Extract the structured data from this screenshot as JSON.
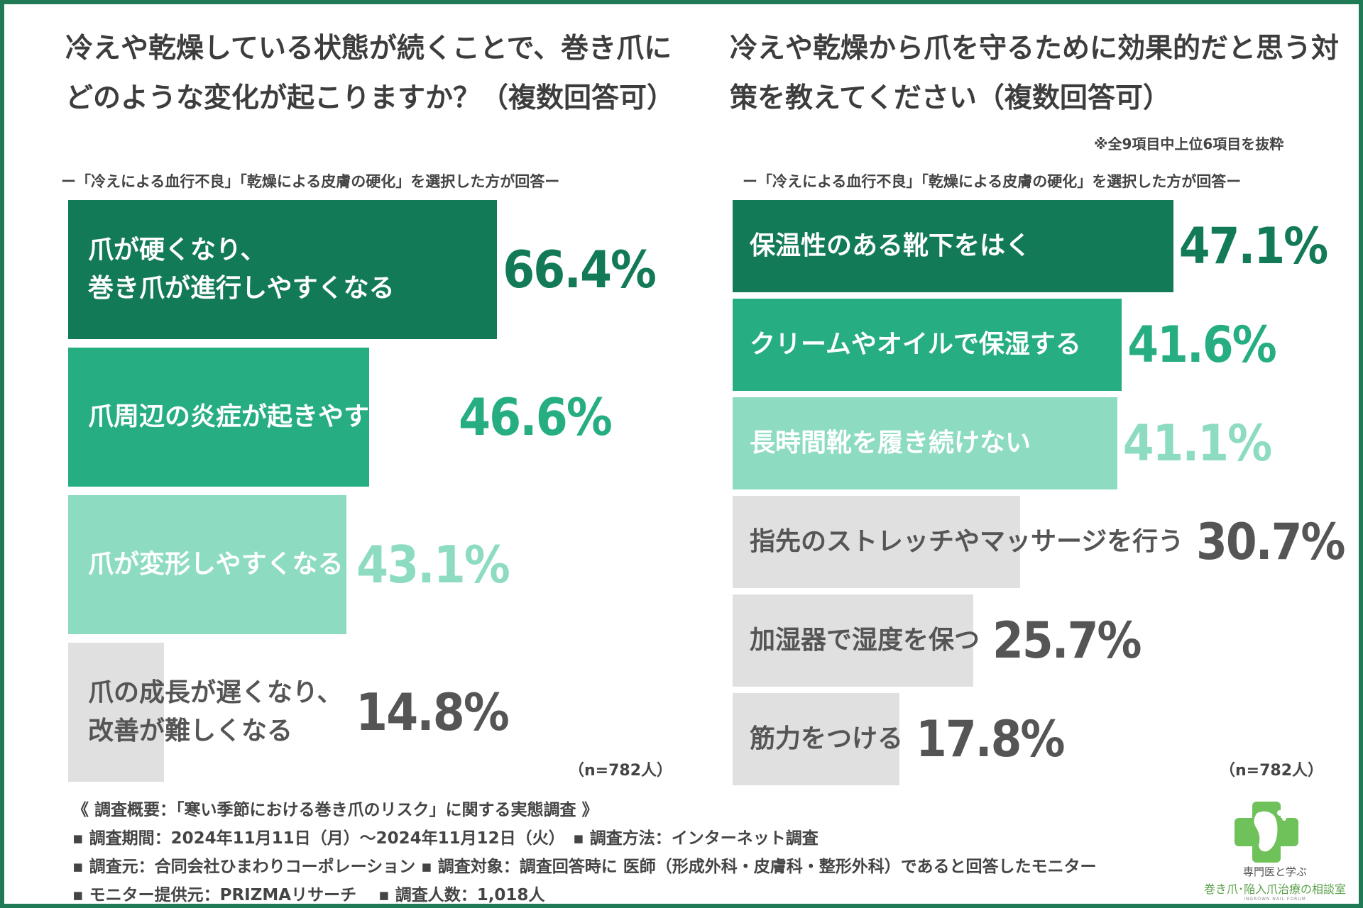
{
  "colors": {
    "frame": "#1f7a55",
    "dark": "#137a57",
    "mid": "#26ad82",
    "light": "#8ddcc2",
    "gray": "#e0e0e0",
    "grayText": "#555555"
  },
  "left": {
    "title": "冷えや乾燥している状態が続くことで、巻き爪にどのような変化が起こりますか？（複数回答可）",
    "subnote": "ー「冷えによる血行不良」「乾燥による皮膚の硬化」を選択した方が回答ー",
    "n": "（n=782人）"
  },
  "right": {
    "title": "冷えや乾燥から爪を守るために効果的だと思う対策を教えてください（複数回答可）",
    "extract_note": "※全9項目中上位6項目を抜粋",
    "subnote": "ー「冷えによる血行不良」「乾燥による皮膚の硬化」を選択した方が回答ー",
    "n": "（n=782人）"
  },
  "chart_data": [
    {
      "type": "bar",
      "orientation": "horizontal",
      "title": "冷えや乾燥している状態が続くことで、巻き爪にどのような変化が起こりますか？（複数回答可）",
      "unit": "%",
      "xlim": [
        0,
        100
      ],
      "categories": [
        "爪が硬くなり、\n巻き爪が進行しやすくなる",
        "爪周辺の炎症が起きやすくなる",
        "爪が変形しやすくなる",
        "爪の成長が遅くなり、\n改善が難しくなる"
      ],
      "values": [
        66.4,
        46.6,
        43.1,
        14.8
      ],
      "value_labels": [
        "66.4%",
        "46.6%",
        "43.1%",
        "14.8%"
      ],
      "bar_colors": [
        "#137a57",
        "#26ad82",
        "#8ddcc2",
        "#e0e0e0"
      ],
      "label_colors": [
        "#ffffff",
        "#ffffff",
        "#ffffff",
        "#555555"
      ],
      "value_colors": [
        "#137a57",
        "#26ad82",
        "#8ddcc2",
        "#555555"
      ]
    },
    {
      "type": "bar",
      "orientation": "horizontal",
      "title": "冷えや乾燥から爪を守るために効果的だと思う対策を教えてください（複数回答可）",
      "unit": "%",
      "xlim": [
        0,
        100
      ],
      "categories": [
        "保温性のある靴下をはく",
        "クリームやオイルで保湿する",
        "長時間靴を履き続けない",
        "指先のストレッチやマッサージを行う",
        "加湿器で湿度を保つ",
        "筋力をつける"
      ],
      "values": [
        47.1,
        41.6,
        41.1,
        30.7,
        25.7,
        17.8
      ],
      "value_labels": [
        "47.1%",
        "41.6%",
        "41.1%",
        "30.7%",
        "25.7%",
        "17.8%"
      ],
      "bar_colors": [
        "#137a57",
        "#26ad82",
        "#8ddcc2",
        "#e0e0e0",
        "#e0e0e0",
        "#e0e0e0"
      ],
      "label_colors": [
        "#ffffff",
        "#ffffff",
        "#ffffff",
        "#555555",
        "#555555",
        "#555555"
      ],
      "value_colors": [
        "#137a57",
        "#26ad82",
        "#8ddcc2",
        "#555555",
        "#555555",
        "#555555"
      ]
    }
  ],
  "footer": {
    "summary": "《 調査概要：「寒い季節における巻き爪のリスク」に関する実態調査 》",
    "period": "▪ 調査期間：2024年11月11日（月）～2024年11月12日（火）　▪ 調査方法：インターネット調査",
    "source": "▪ 調査元：合同会社ひまわりコーポレーション ▪ 調査対象：調査回答時に 医師（形成外科・皮膚科・整形外科）であると回答したモニター",
    "provider": "▪ モニター提供元：PRIZMAリサーチ　 ▪ 調査人数：1,018人"
  },
  "logo": {
    "line1": "専門医と学ぶ",
    "line2": "巻き爪･陥入爪治療の相談室",
    "line3": "INGROWN NAIL FORUM",
    "icon": "cross-foot-icon"
  }
}
